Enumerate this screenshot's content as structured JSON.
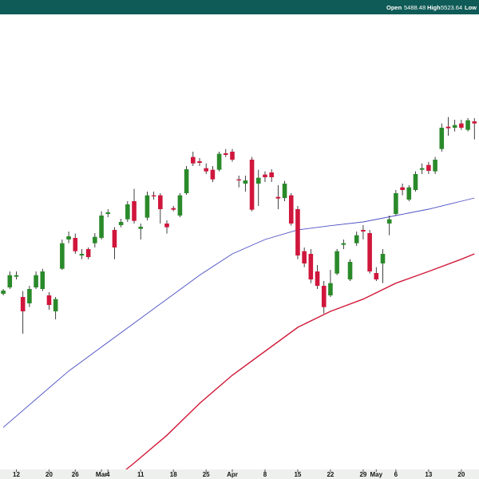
{
  "chart_data": {
    "type": "candlestick",
    "info_labels": [
      "Open",
      "5488.48",
      "High",
      "5523.64",
      "Low"
    ],
    "up_color": "#2a8a2a",
    "down_color": "#d0163c",
    "wick_color": "#111111",
    "header_color": "#0f5b57",
    "xlim": [
      -0.5,
      72.7
    ],
    "ylim": [
      4640,
      5540
    ],
    "xticks": [
      {
        "value": 2,
        "label": "12"
      },
      {
        "value": 7,
        "label": "20"
      },
      {
        "value": 11,
        "label": "26"
      },
      {
        "value": 15,
        "label": "Mar"
      },
      {
        "value": 16,
        "label": "4"
      },
      {
        "value": 21,
        "label": "11"
      },
      {
        "value": 26,
        "label": "18"
      },
      {
        "value": 31,
        "label": "25"
      },
      {
        "value": 35,
        "label": "Apr"
      },
      {
        "value": 40,
        "label": "8"
      },
      {
        "value": 45,
        "label": "15"
      },
      {
        "value": 50,
        "label": "22"
      },
      {
        "value": 55,
        "label": "29"
      },
      {
        "value": 57,
        "label": "May"
      },
      {
        "value": 60,
        "label": "6"
      },
      {
        "value": 65,
        "label": "13"
      },
      {
        "value": 70,
        "label": "20"
      }
    ],
    "open": [
      4988,
      5000,
      5020,
      4982,
      4970,
      5000,
      4997,
      4985,
      4955,
      5035,
      5090,
      5093,
      5060,
      5072,
      5083,
      5093,
      5138,
      5108,
      5117,
      5128,
      5162,
      5110,
      5131,
      5173,
      5173,
      5120,
      5149,
      5135,
      5177,
      5245,
      5237,
      5224,
      5221,
      5221,
      5252,
      5255,
      5203,
      5195,
      5240,
      5195,
      5212,
      5216,
      5170,
      5168,
      5173,
      5147,
      5068,
      5063,
      5030,
      5003,
      4985,
      5026,
      5080,
      5015,
      5083,
      5108,
      5102,
      5027,
      5045,
      5120,
      5138,
      5188,
      5165,
      5183,
      5221,
      5230,
      5218,
      5260,
      5302,
      5300,
      5308,
      5296,
      5312
    ],
    "high": [
      4997,
      5030,
      5030,
      4993,
      5003,
      5030,
      5035,
      4991,
      4982,
      5090,
      5105,
      5101,
      5072,
      5075,
      5102,
      5143,
      5147,
      5113,
      5129,
      5162,
      5185,
      5120,
      5180,
      5180,
      5177,
      5126,
      5153,
      5177,
      5228,
      5255,
      5243,
      5233,
      5228,
      5255,
      5260,
      5260,
      5210,
      5210,
      5245,
      5221,
      5218,
      5222,
      5192,
      5200,
      5177,
      5153,
      5075,
      5072,
      5042,
      5012,
      5033,
      5072,
      5090,
      5053,
      5105,
      5117,
      5108,
      5038,
      5072,
      5135,
      5183,
      5195,
      5192,
      5218,
      5233,
      5236,
      5245,
      5308,
      5320,
      5315,
      5315,
      5318,
      5318
    ],
    "low": [
      4985,
      4997,
      5015,
      4913,
      4963,
      4997,
      4993,
      4958,
      4940,
      5033,
      5083,
      5063,
      5053,
      5053,
      5075,
      5090,
      5132,
      5053,
      5113,
      5123,
      5120,
      5090,
      5126,
      5165,
      5120,
      5101,
      5143,
      5132,
      5174,
      5228,
      5228,
      5213,
      5198,
      5218,
      5245,
      5236,
      5188,
      5180,
      5143,
      5153,
      5198,
      5198,
      5147,
      5162,
      5116,
      5053,
      5038,
      5008,
      4997,
      4951,
      4982,
      5023,
      5072,
      5012,
      5078,
      5090,
      5026,
      5012,
      5008,
      5098,
      5135,
      5173,
      5162,
      5180,
      5213,
      5213,
      5213,
      5255,
      5285,
      5293,
      5296,
      5293,
      5278
    ],
    "close": [
      4994,
      5023,
      5023,
      4955,
      4997,
      5023,
      5030,
      4967,
      4978,
      5083,
      5096,
      5068,
      5063,
      5057,
      5095,
      5135,
      5141,
      5075,
      5123,
      5156,
      5125,
      5114,
      5173,
      5171,
      5147,
      5113,
      5146,
      5173,
      5222,
      5233,
      5234,
      5218,
      5203,
      5251,
      5249,
      5240,
      5201,
      5201,
      5146,
      5206,
      5207,
      5207,
      5167,
      5195,
      5120,
      5060,
      5045,
      5015,
      5003,
      4963,
      5008,
      5068,
      5083,
      5048,
      5098,
      5105,
      5030,
      5015,
      5063,
      5128,
      5177,
      5183,
      5188,
      5213,
      5224,
      5219,
      5240,
      5300,
      5299,
      5305,
      5300,
      5314,
      5308
    ],
    "overlays": [
      {
        "color": "#4b4fc4",
        "x": [
          0,
          5,
          10,
          15,
          20,
          25,
          30,
          35,
          40,
          45,
          50,
          55,
          60,
          65,
          70,
          72
        ],
        "values": [
          4737,
          4790,
          4843,
          4888,
          4933,
          4978,
          5023,
          5063,
          5090,
          5108,
          5116,
          5123,
          5135,
          5147,
          5162,
          5168
        ]
      },
      {
        "color": "#d11a3a",
        "x": [
          17,
          20,
          25,
          30,
          35,
          40,
          45,
          50,
          55,
          60,
          65,
          70,
          72
        ],
        "values": [
          4640,
          4670,
          4722,
          4782,
          4835,
          4880,
          4925,
          4955,
          4978,
          5008,
          5030,
          5053,
          5063
        ]
      }
    ]
  }
}
